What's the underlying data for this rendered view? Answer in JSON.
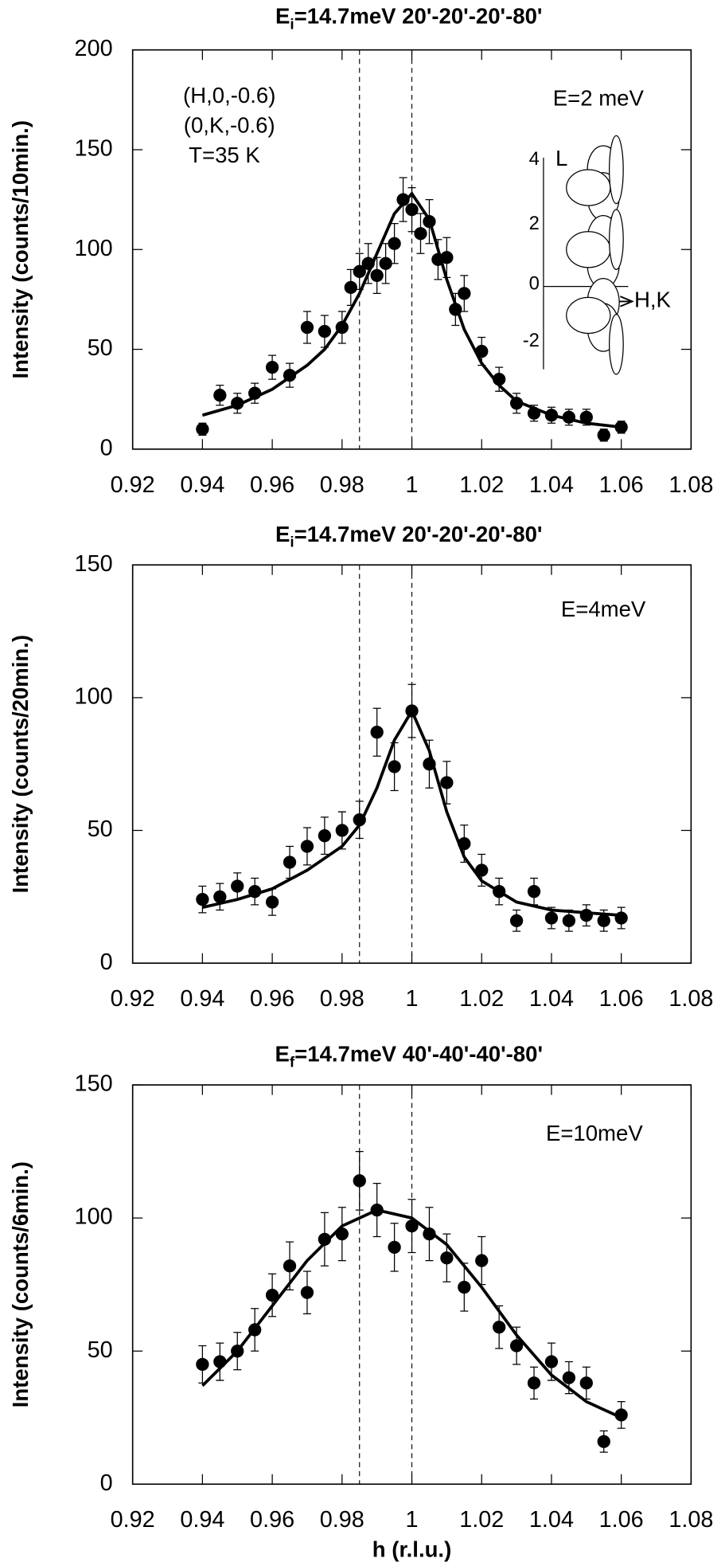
{
  "chart_data": [
    {
      "type": "scatter",
      "title_main": "E",
      "title_sub": "i",
      "title_rest": "=14.7meV  20'-20'-20'-80'",
      "ylabel": "Intensity (counts/10min.)",
      "annotations": [
        "(H,0,-0.6)",
        "(0,K,-0.6)",
        "T=35 K",
        "E=2 meV"
      ],
      "inset": {
        "vlabel": "L",
        "hlabel": "H,K",
        "ticks": [
          4,
          2,
          0,
          -2
        ]
      },
      "xlim": [
        0.92,
        1.08
      ],
      "xticks": [
        0.92,
        0.94,
        0.96,
        0.98,
        1,
        1.02,
        1.04,
        1.06,
        1.08
      ],
      "ylim": [
        0,
        200
      ],
      "yticks": [
        0,
        50,
        100,
        150,
        200
      ],
      "vlines": [
        0.985,
        1
      ],
      "series": [
        {
          "color": "#000000",
          "x": [
            0.94,
            0.945,
            0.95,
            0.955,
            0.96,
            0.965,
            0.97,
            0.975,
            0.98,
            0.9825,
            0.985,
            0.9875,
            0.99,
            0.9925,
            0.995,
            0.9975,
            1.0,
            1.0025,
            1.005,
            1.0075,
            1.01,
            1.0125,
            1.015,
            1.02,
            1.025,
            1.03,
            1.035,
            1.04,
            1.045,
            1.05,
            1.055,
            1.06
          ],
          "values": [
            10,
            27,
            23,
            28,
            41,
            37,
            61,
            59,
            61,
            81,
            89,
            93,
            87,
            93,
            103,
            125,
            120,
            108,
            114,
            95,
            96,
            70,
            78,
            49,
            35,
            23,
            18,
            17,
            16,
            16,
            7,
            11
          ],
          "errors": [
            3,
            5,
            5,
            5,
            6,
            6,
            8,
            8,
            8,
            9,
            9,
            10,
            9,
            10,
            10,
            11,
            11,
            10,
            11,
            10,
            10,
            8,
            9,
            7,
            6,
            5,
            4,
            4,
            4,
            4,
            3,
            3
          ]
        }
      ],
      "fit": {
        "color": "#000000",
        "x": [
          0.94,
          0.95,
          0.96,
          0.97,
          0.975,
          0.98,
          0.985,
          0.99,
          0.995,
          1.0,
          1.005,
          1.01,
          1.015,
          1.02,
          1.025,
          1.03,
          1.04,
          1.05,
          1.06
        ],
        "values": [
          17,
          22,
          30,
          42,
          50,
          62,
          78,
          98,
          118,
          128,
          115,
          85,
          60,
          43,
          32,
          24,
          17,
          13,
          11
        ]
      }
    },
    {
      "type": "scatter",
      "title_main": "E",
      "title_sub": "i",
      "title_rest": "=14.7meV  20'-20'-20'-80'",
      "ylabel": "Intensity (counts/20min.)",
      "annotations": [
        "E=4meV"
      ],
      "xlim": [
        0.92,
        1.08
      ],
      "xticks": [
        0.92,
        0.94,
        0.96,
        0.98,
        1,
        1.02,
        1.04,
        1.06,
        1.08
      ],
      "ylim": [
        0,
        150
      ],
      "yticks": [
        0,
        50,
        100,
        150
      ],
      "vlines": [
        0.985,
        1
      ],
      "series": [
        {
          "color": "#000000",
          "x": [
            0.94,
            0.945,
            0.95,
            0.955,
            0.96,
            0.965,
            0.97,
            0.975,
            0.98,
            0.985,
            0.99,
            0.995,
            1.0,
            1.005,
            1.01,
            1.015,
            1.02,
            1.025,
            1.03,
            1.035,
            1.04,
            1.045,
            1.05,
            1.055,
            1.06
          ],
          "values": [
            24,
            25,
            29,
            27,
            23,
            38,
            44,
            48,
            50,
            54,
            87,
            74,
            95,
            75,
            68,
            45,
            35,
            27,
            16,
            27,
            17,
            16,
            18,
            16,
            17
          ],
          "errors": [
            5,
            5,
            5,
            5,
            5,
            6,
            7,
            7,
            7,
            7,
            9,
            9,
            10,
            9,
            8,
            7,
            6,
            5,
            4,
            5,
            4,
            4,
            4,
            4,
            4
          ]
        }
      ],
      "fit": {
        "color": "#000000",
        "x": [
          0.94,
          0.95,
          0.96,
          0.97,
          0.98,
          0.985,
          0.99,
          0.995,
          1.0,
          1.005,
          1.01,
          1.015,
          1.02,
          1.03,
          1.04,
          1.05,
          1.06
        ],
        "values": [
          21,
          24,
          28,
          35,
          44,
          52,
          66,
          84,
          95,
          80,
          57,
          40,
          31,
          23,
          20,
          19,
          18
        ]
      }
    },
    {
      "type": "scatter",
      "title_main": "E",
      "title_sub": "f",
      "title_rest": "=14.7meV  40'-40'-40'-80'",
      "ylabel": "Intensity (counts/6min.)",
      "xlabel": "h (r.l.u.)",
      "annotations": [
        "E=10meV"
      ],
      "xlim": [
        0.92,
        1.08
      ],
      "xticks": [
        0.92,
        0.94,
        0.96,
        0.98,
        1,
        1.02,
        1.04,
        1.06,
        1.08
      ],
      "ylim": [
        0,
        150
      ],
      "yticks": [
        0,
        50,
        100,
        150
      ],
      "vlines": [
        0.985,
        1
      ],
      "series": [
        {
          "color": "#000000",
          "x": [
            0.94,
            0.945,
            0.95,
            0.955,
            0.96,
            0.965,
            0.97,
            0.975,
            0.98,
            0.985,
            0.99,
            0.995,
            1.0,
            1.005,
            1.01,
            1.015,
            1.02,
            1.025,
            1.03,
            1.035,
            1.04,
            1.045,
            1.05,
            1.055,
            1.06
          ],
          "values": [
            45,
            46,
            50,
            58,
            71,
            82,
            72,
            92,
            94,
            114,
            103,
            89,
            97,
            94,
            85,
            74,
            84,
            59,
            52,
            38,
            46,
            40,
            38,
            16,
            26
          ],
          "errors": [
            7,
            7,
            7,
            8,
            8,
            9,
            8,
            10,
            10,
            11,
            10,
            9,
            10,
            10,
            9,
            9,
            9,
            8,
            7,
            6,
            7,
            6,
            6,
            4,
            5
          ]
        }
      ],
      "fit": {
        "color": "#000000",
        "x": [
          0.94,
          0.95,
          0.96,
          0.97,
          0.98,
          0.99,
          1.0,
          1.01,
          1.02,
          1.03,
          1.04,
          1.05,
          1.06
        ],
        "values": [
          37,
          50,
          67,
          84,
          97,
          103,
          100,
          90,
          74,
          56,
          41,
          31,
          25
        ]
      }
    }
  ]
}
